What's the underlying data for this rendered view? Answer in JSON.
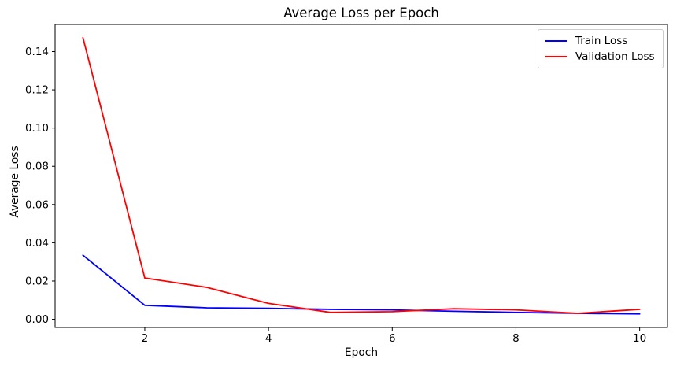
{
  "chart_data": {
    "type": "line",
    "title": "Average Loss per Epoch",
    "xlabel": "Epoch",
    "ylabel": "Average Loss",
    "x": [
      1,
      2,
      3,
      4,
      5,
      6,
      7,
      8,
      9,
      10
    ],
    "series": [
      {
        "name": "Train Loss",
        "color": "#0000ff",
        "values": [
          0.0335,
          0.0073,
          0.006,
          0.0057,
          0.0052,
          0.0049,
          0.0042,
          0.0036,
          0.0031,
          0.0028
        ]
      },
      {
        "name": "Validation Loss",
        "color": "#ff0000",
        "values": [
          0.1473,
          0.0216,
          0.0167,
          0.0083,
          0.0036,
          0.004,
          0.0055,
          0.0049,
          0.0031,
          0.0052
        ]
      }
    ],
    "xticks": [
      2,
      4,
      6,
      8,
      10
    ],
    "yticks": [
      0.0,
      0.02,
      0.04,
      0.06,
      0.08,
      0.1,
      0.12,
      0.14
    ],
    "ytick_decimals": 2,
    "xlim": [
      0.55,
      10.45
    ],
    "ylim": [
      -0.0043,
      0.1542
    ],
    "grid": false,
    "legend_position": "top-right",
    "background_color": "#ffffff",
    "spine_color": "#000000"
  }
}
